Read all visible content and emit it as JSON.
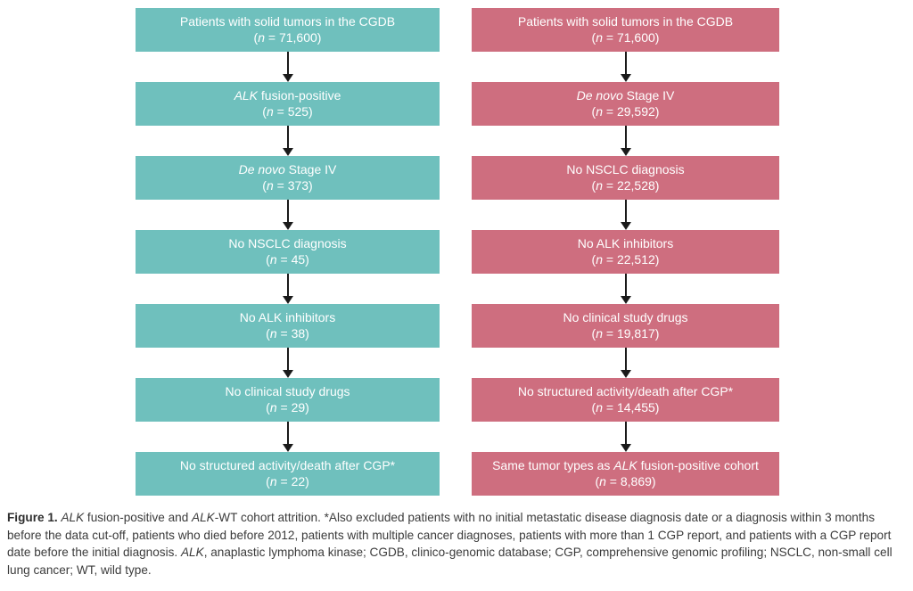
{
  "colors": {
    "background": "#FFFFFF",
    "alk_fusion_positive": "#6FC0BD",
    "alk_wt": "#CE6E7F",
    "box_text": "#FFFFFF",
    "arrow": "#1A1A1A",
    "caption_text": "#3B3B3B"
  },
  "flowchart": {
    "columns": [
      {
        "id": "alk-fusion-positive",
        "color_key": "alk_fusion_positive",
        "boxes": [
          {
            "label": "Patients with solid tumors in the CGDB",
            "n": "(_n_ = 71,600)"
          },
          {
            "label": "_ALK_ fusion-positive",
            "n": "(_n_ = 525)"
          },
          {
            "label": "_De novo_ Stage IV",
            "n": "(_n_ = 373)"
          },
          {
            "label": "No NSCLC diagnosis",
            "n": "(_n_ = 45)"
          },
          {
            "label": "No ALK inhibitors",
            "n": "(_n_ = 38)"
          },
          {
            "label": "No clinical study drugs",
            "n": "(_n_ = 29)"
          },
          {
            "label": "No structured activity/death after CGP*",
            "n": "(_n_ = 22)"
          }
        ]
      },
      {
        "id": "alk-wt",
        "color_key": "alk_wt",
        "boxes": [
          {
            "label": "Patients with solid tumors in the CGDB",
            "n": "(_n_ = 71,600)"
          },
          {
            "label": "_De novo_ Stage IV",
            "n": "(_n_ = 29,592)"
          },
          {
            "label": "No NSCLC diagnosis",
            "n": "(_n_ = 22,528)"
          },
          {
            "label": "No ALK inhibitors",
            "n": "(_n_ = 22,512)"
          },
          {
            "label": "No clinical study drugs",
            "n": "(_n_ = 19,817)"
          },
          {
            "label": "No structured activity/death after CGP*",
            "n": "(_n_ = 14,455)"
          },
          {
            "label": "Same tumor types as _ALK_ fusion-positive cohort",
            "n": "(_n_ = 8,869)"
          }
        ]
      }
    ]
  },
  "figure": {
    "caption": "**Figure 1.** _ALK_ fusion-positive and _ALK_-WT cohort attrition. *Also excluded patients with no initial metastatic disease diagnosis date or a diagnosis within 3 months before the data cut-off, patients who died before 2012, patients with multiple cancer diagnoses, patients with more than 1 CGP report, and patients with a CGP report date before the initial diagnosis. _ALK_, anaplastic lymphoma kinase; CGDB, clinico-genomic database; CGP, comprehensive genomic profiling; NSCLC, non-small cell lung cancer; WT, wild type."
  }
}
